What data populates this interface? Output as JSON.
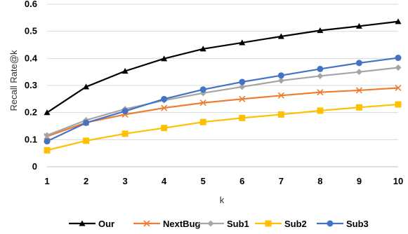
{
  "chart_data": {
    "type": "line",
    "title": "",
    "xlabel": "k",
    "ylabel": "Recall Rate@k",
    "x": [
      1,
      2,
      3,
      4,
      5,
      6,
      7,
      8,
      9,
      10
    ],
    "xlim": [
      1,
      10
    ],
    "ylim": [
      0,
      0.6
    ],
    "yticks": [
      "0",
      "0.1",
      "0.2",
      "0.3",
      "0.4",
      "0.5",
      "0.6"
    ],
    "grid": "horizontal",
    "legend_position": "bottom",
    "series": [
      {
        "name": "Our",
        "color": "#000000",
        "marker": "triangle",
        "values": [
          0.2,
          0.295,
          0.353,
          0.399,
          0.435,
          0.458,
          0.481,
          0.503,
          0.519,
          0.536
        ]
      },
      {
        "name": "NextBug",
        "color": "#ed7d31",
        "marker": "x",
        "values": [
          0.112,
          0.163,
          0.193,
          0.217,
          0.236,
          0.25,
          0.263,
          0.275,
          0.282,
          0.291
        ]
      },
      {
        "name": "Sub1",
        "color": "#a5a5a5",
        "marker": "diamond",
        "values": [
          0.116,
          0.172,
          0.213,
          0.245,
          0.272,
          0.295,
          0.318,
          0.335,
          0.35,
          0.366
        ]
      },
      {
        "name": "Sub2",
        "color": "#ffc000",
        "marker": "square",
        "values": [
          0.061,
          0.096,
          0.122,
          0.143,
          0.165,
          0.18,
          0.193,
          0.207,
          0.219,
          0.23
        ]
      },
      {
        "name": "Sub3",
        "color": "#4472c4",
        "marker": "circle",
        "values": [
          0.094,
          0.162,
          0.205,
          0.25,
          0.285,
          0.313,
          0.337,
          0.361,
          0.383,
          0.402
        ]
      }
    ]
  }
}
